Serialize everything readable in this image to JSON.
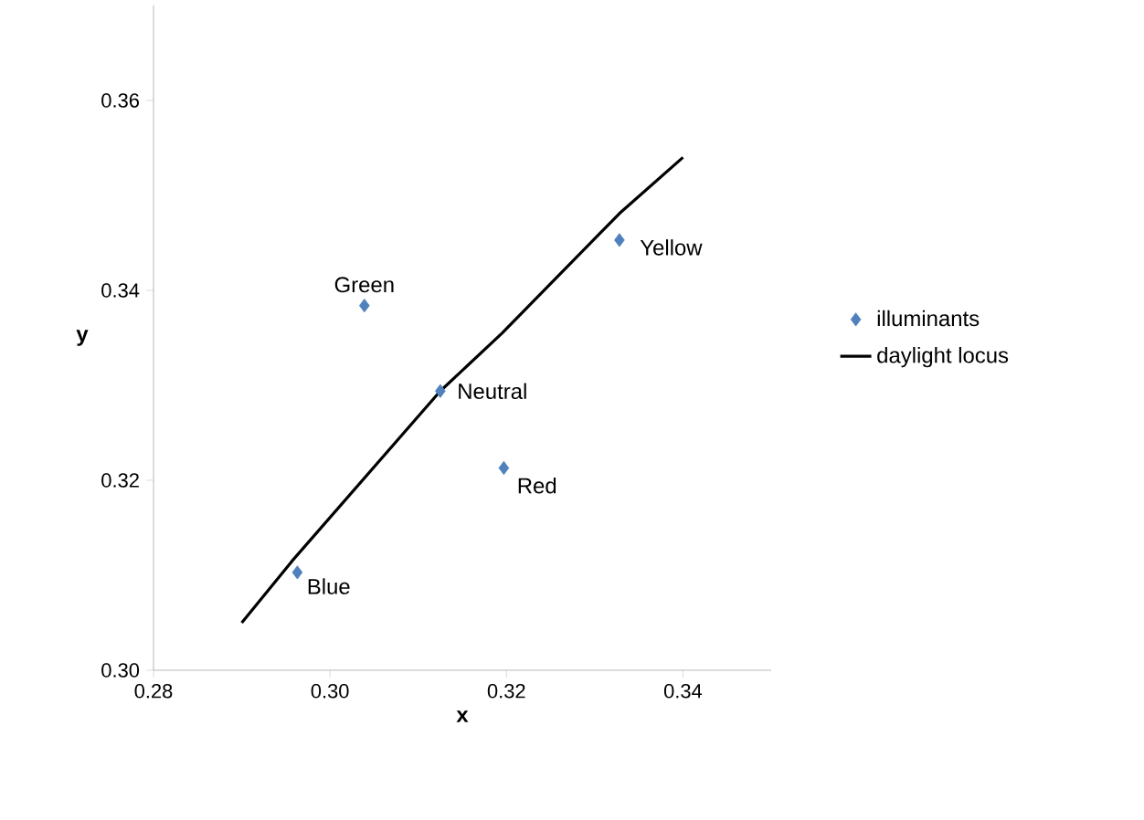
{
  "chart_data": {
    "type": "scatter",
    "xlabel": "x",
    "ylabel": "y",
    "xlim": [
      0.28,
      0.35
    ],
    "ylim": [
      0.3,
      0.37
    ],
    "xticks": [
      0.28,
      {
        "value": 0.3,
        "label": "0.30"
      },
      0.32,
      0.34
    ],
    "yticks": [
      {
        "value": 0.3,
        "label": "0.30"
      },
      0.32,
      0.34,
      0.36
    ],
    "grid": false,
    "legend": "right",
    "series": [
      {
        "name": "illuminants",
        "color": "#4f81bd",
        "marker": "diamond",
        "x": [
          0.2963,
          0.3039,
          0.3125,
          0.3197,
          0.3328
        ],
        "values": [
          0.3103,
          0.3384,
          0.3294,
          0.3213,
          0.3453
        ],
        "value_labels": [
          "Blue",
          "Green",
          "Neutral",
          "Red",
          "Yellow"
        ]
      },
      {
        "name": "daylight locus",
        "type": "line",
        "color": "#000000",
        "marker": "none",
        "line_style": "solid",
        "x": [
          0.29,
          0.2957,
          0.3125,
          0.3195,
          0.3328,
          0.34
        ],
        "values": [
          0.305,
          0.3115,
          0.3294,
          0.3355,
          0.3481,
          0.354
        ]
      }
    ]
  }
}
